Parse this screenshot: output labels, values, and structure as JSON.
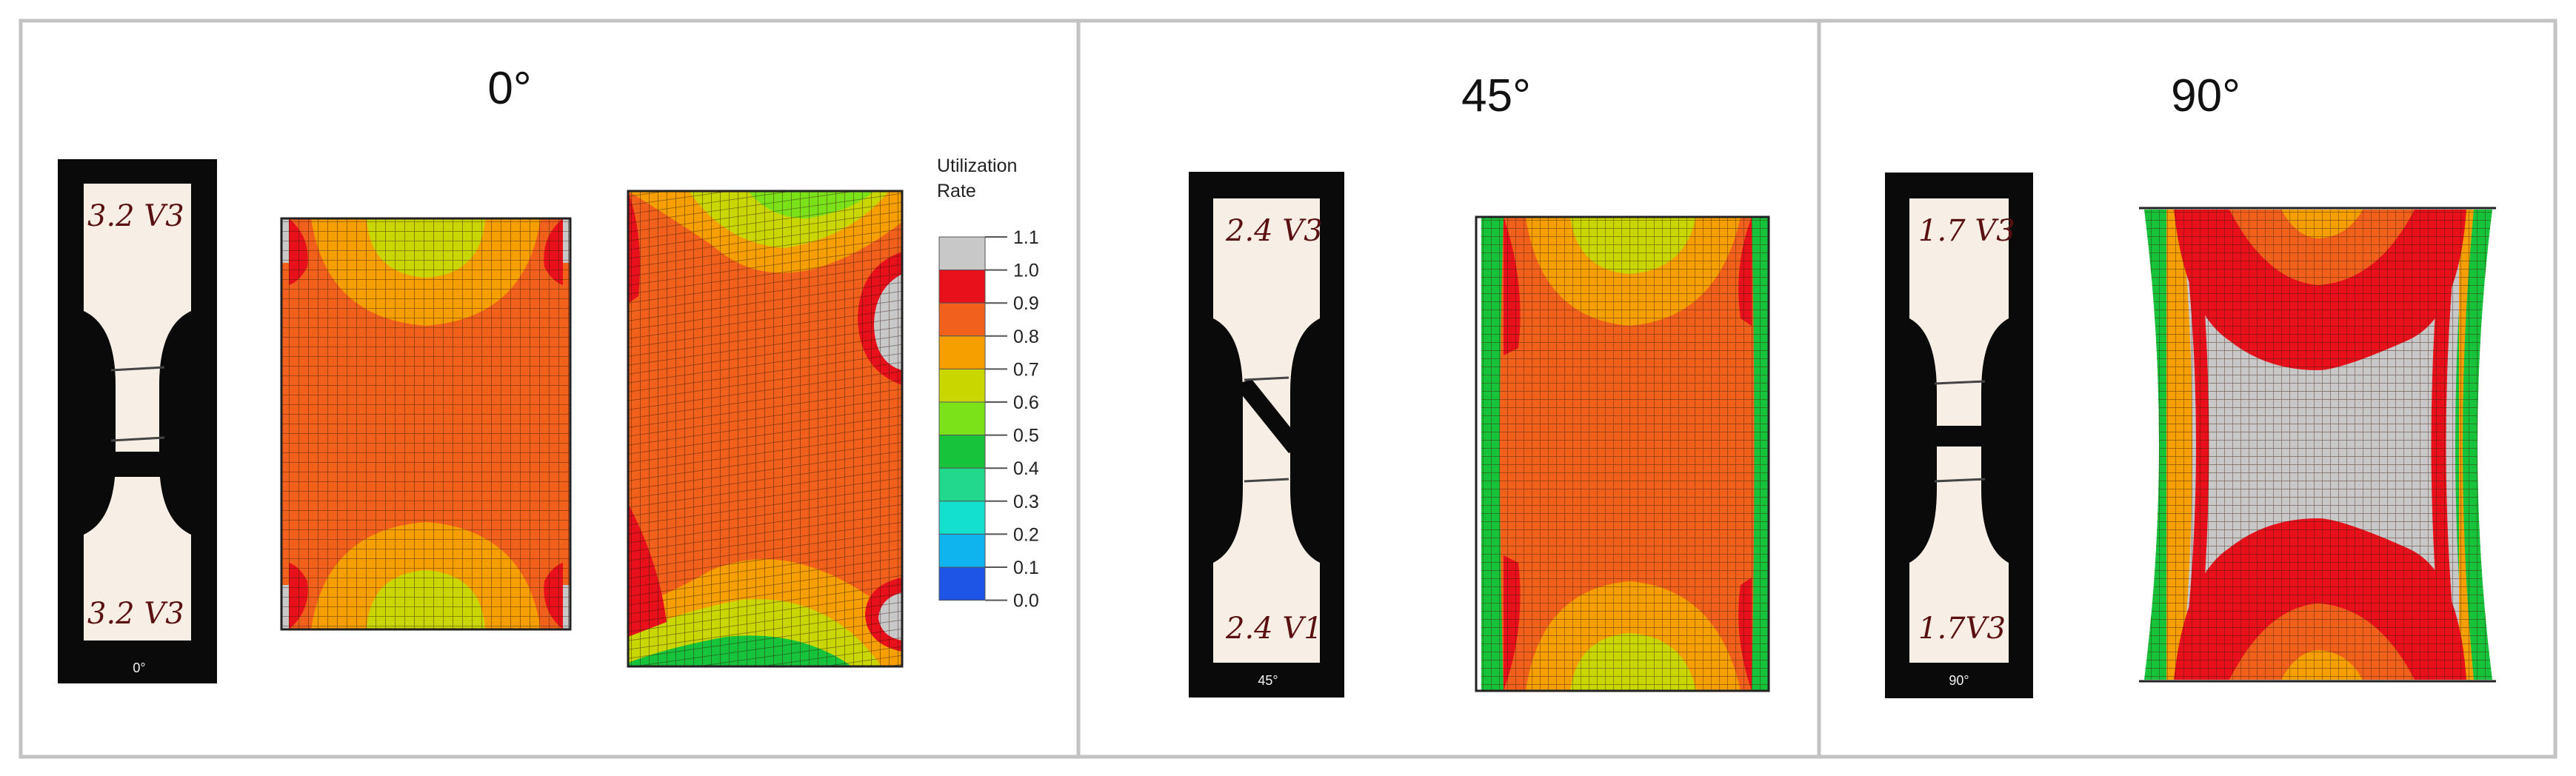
{
  "panels": [
    {
      "title": "0°",
      "photo": {
        "top_mark": "3.2 V3",
        "bottom_mark": "3.2 V3",
        "caption": "0°"
      }
    },
    {
      "title": "45°",
      "photo": {
        "top_mark": "2.4 V3",
        "bottom_mark": "2.4 V1",
        "caption": "45°"
      }
    },
    {
      "title": "90°",
      "photo": {
        "top_mark": "1.7 V3",
        "bottom_mark": "1.7V3",
        "caption": "90°"
      }
    }
  ],
  "legend": {
    "title_line1": "Utilization",
    "title_line2": "Rate",
    "ticks": [
      "1.1",
      "1.0",
      "0.9",
      "0.8",
      "0.7",
      "0.6",
      "0.5",
      "0.4",
      "0.3",
      "0.2",
      "0.1",
      "0.0"
    ],
    "colors": [
      "#c8c8c8",
      "#e8101a",
      "#f2611b",
      "#f5a000",
      "#c9d600",
      "#7be21a",
      "#16c33a",
      "#20d98d",
      "#13e0cf",
      "#0fb4ef",
      "#1f55e6"
    ]
  },
  "colors": {
    "gray": "#c8c8c8",
    "red": "#e8101a",
    "red_orange": "#f2611b",
    "orange": "#f5a000",
    "yellow_green": "#c9d600",
    "green": "#16c33a",
    "photo_background": "#0a0a0a",
    "specimen": "#f7efe6",
    "panel_border": "#c3c3c3"
  }
}
